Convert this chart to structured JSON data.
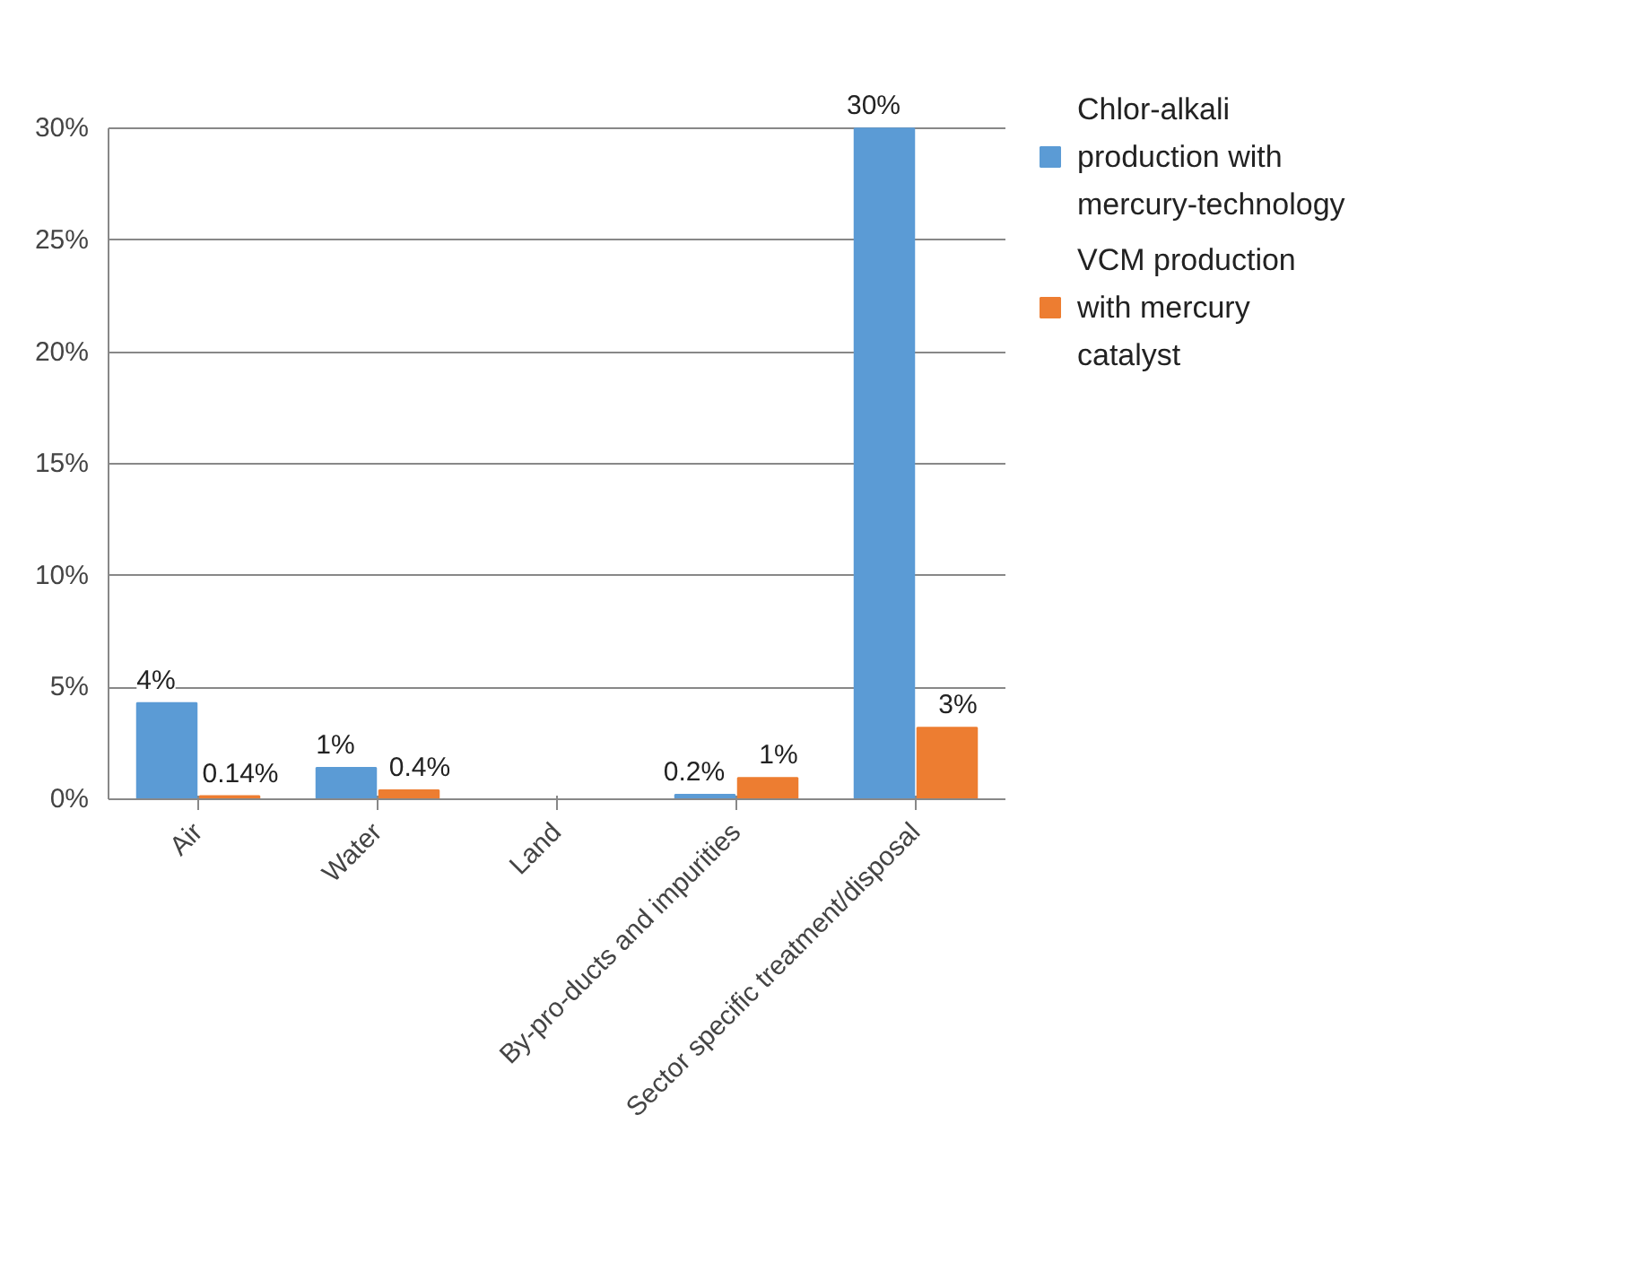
{
  "chart_data": {
    "type": "bar",
    "categories": [
      "Air",
      "Water",
      "Land",
      "By-pro-ducts and impurities",
      "Sector specific treatment/disposal"
    ],
    "series": [
      {
        "name": "Chlor-alkali production with mercury-technology",
        "color": "#5b9bd5",
        "values": [
          4.3,
          1.4,
          null,
          0.2,
          30
        ],
        "value_labels": [
          "4%",
          "1%",
          null,
          "0.2%",
          "30%"
        ]
      },
      {
        "name": "VCM production with mercury catalyst",
        "color": "#ed7d31",
        "values": [
          0.14,
          0.4,
          null,
          0.95,
          3.2
        ],
        "value_labels": [
          "0.14%",
          "0.4%",
          null,
          "1%",
          "3%"
        ]
      }
    ],
    "ylim": [
      0,
      30
    ],
    "yticks": [
      {
        "value": 0,
        "label": "0%"
      },
      {
        "value": 5,
        "label": "5%"
      },
      {
        "value": 10,
        "label": "10%"
      },
      {
        "value": 15,
        "label": "15%"
      },
      {
        "value": 20,
        "label": "20%"
      },
      {
        "value": 25,
        "label": "25%"
      },
      {
        "value": 30,
        "label": "30%"
      }
    ],
    "grid": "y",
    "legend": "right"
  }
}
